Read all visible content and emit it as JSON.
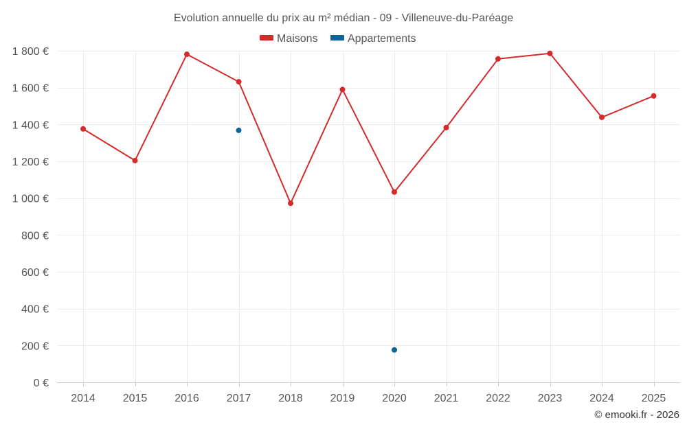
{
  "chart_data": {
    "type": "line",
    "title": "Evolution annuelle du prix au m² médian - 09 - Villeneuve-du-Paréage",
    "categories": [
      "2014",
      "2015",
      "2016",
      "2017",
      "2018",
      "2019",
      "2020",
      "2021",
      "2022",
      "2023",
      "2024",
      "2025"
    ],
    "ylim": [
      0,
      1800
    ],
    "yticks": [
      0,
      200,
      400,
      600,
      800,
      1000,
      1200,
      1400,
      1600,
      1800
    ],
    "ytick_labels": [
      "0 €",
      "200 €",
      "400 €",
      "600 €",
      "800 €",
      "1 000 €",
      "1 200 €",
      "1 400 €",
      "1 600 €",
      "1 800 €"
    ],
    "grid": true,
    "legend_position": "top-center",
    "series": [
      {
        "name": "Maisons",
        "color": "#d42a2a",
        "values": [
          1376,
          1204,
          1781,
          1632,
          972,
          1590,
          1033,
          1383,
          1756,
          1786,
          1439,
          1555
        ]
      },
      {
        "name": "Appartements",
        "color": "#0a6699",
        "values": [
          null,
          null,
          null,
          1368,
          null,
          null,
          176,
          null,
          null,
          null,
          null,
          null
        ]
      }
    ]
  },
  "footer": {
    "credit": "© emooki.fr - 2026"
  }
}
